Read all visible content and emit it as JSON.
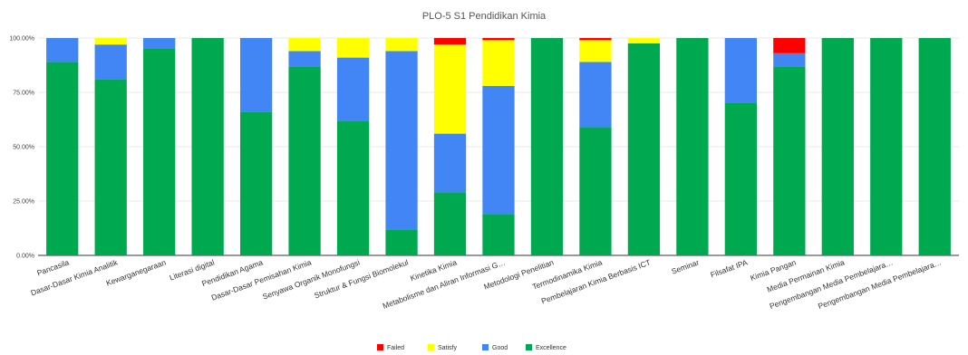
{
  "chart_data": {
    "type": "bar",
    "stacked": true,
    "title": "PLO-5 S1 Pendidikan Kimia",
    "xlabel": "",
    "ylabel": "",
    "ylim": [
      0,
      100
    ],
    "yticks": [
      "0.00%",
      "25.00%",
      "50.00%",
      "75.00%",
      "100.00%"
    ],
    "ytick_values": [
      0,
      25,
      50,
      75,
      100
    ],
    "grid": true,
    "legend_position": "bottom",
    "categories": [
      "Pancasila",
      "Dasar-Dasar Kimia Analitik",
      "Kewarganegaraan",
      "Literasi digital",
      "Pendidikan Agama",
      "Dasar-Dasar Pemisahan Kimia",
      "Senyawa Organik Monofungsi",
      "Struktur & Fungsi Biomolekul",
      "Kinetika Kimia",
      "Metabolisme dan Aliran Informasi G…",
      "Metodologi Penelitian",
      "Termodinamika Kimia",
      "Pembelajaran Kimia Berbasis ICT",
      "Seminar",
      "Filsafat IPA",
      "Kimia Pangan",
      "Media Permainan Kimia",
      "Pengembangan Media Pembelajara…",
      "Pengembangan Media Pembelajara…"
    ],
    "series": [
      {
        "name": "Excellence",
        "color": "#00a94f",
        "values": [
          89,
          81,
          95,
          100,
          66,
          87,
          62,
          12,
          29,
          19,
          100,
          59,
          97.5,
          100,
          70,
          87,
          100,
          100,
          100
        ]
      },
      {
        "name": "Good",
        "color": "#4285f4",
        "values": [
          11,
          16,
          5,
          0,
          34,
          7,
          29,
          82,
          27,
          59,
          0,
          30,
          0,
          0,
          30,
          6,
          0,
          0,
          0
        ]
      },
      {
        "name": "Satisfy",
        "color": "#ffff00",
        "values": [
          0,
          3,
          0,
          0,
          0,
          6,
          9,
          6,
          41,
          21,
          0,
          10,
          2.5,
          0,
          0,
          0,
          0,
          0,
          0
        ]
      },
      {
        "name": "Failed",
        "color": "#ff0000",
        "values": [
          0,
          0,
          0,
          0,
          0,
          0,
          0,
          0,
          3,
          1,
          0,
          1,
          0,
          0,
          0,
          7,
          0,
          0,
          0
        ]
      }
    ],
    "legend_order": [
      "Failed",
      "Satisfy",
      "Good",
      "Excellence"
    ]
  }
}
